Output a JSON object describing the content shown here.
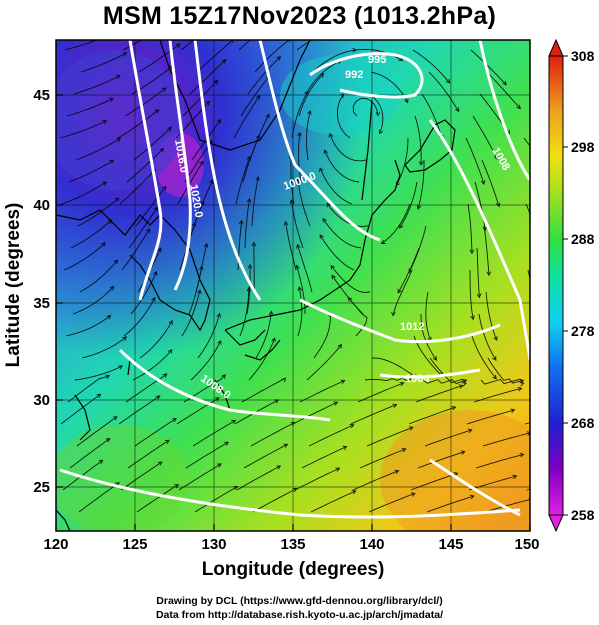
{
  "title": "MSM 15Z17Nov2023 (1013.2hPa)",
  "x_axis": {
    "label": "Longitude (degrees)",
    "ticks": [
      "120",
      "125",
      "130",
      "135",
      "140",
      "145",
      "150"
    ],
    "range": [
      120,
      150
    ]
  },
  "y_axis": {
    "label": "Latitude (degrees)",
    "ticks": [
      "25",
      "30",
      "35",
      "40",
      "45"
    ],
    "range": [
      22.4,
      47.6
    ]
  },
  "colorbar": {
    "ticks": [
      "258",
      "268",
      "278",
      "288",
      "298",
      "308"
    ],
    "range": [
      258,
      308
    ]
  },
  "contour_labels": [
    "1016.0",
    "1020.0",
    "1000.0",
    "995",
    "992",
    "1008",
    "1012",
    "1004",
    "1008.0"
  ],
  "credits": {
    "line1": "Drawing by DCL (https://www.gfd-dennou.org/library/dcl/)",
    "line2": "Data from http://database.rish.kyoto-u.ac.jp/arch/jmadata/"
  },
  "colors": {
    "cold": "#c000c0",
    "cool": "#2050e0",
    "mid": "#18d8c0",
    "warm_mid": "#40e020",
    "warm": "#f0e010",
    "hot": "#f08020"
  }
}
